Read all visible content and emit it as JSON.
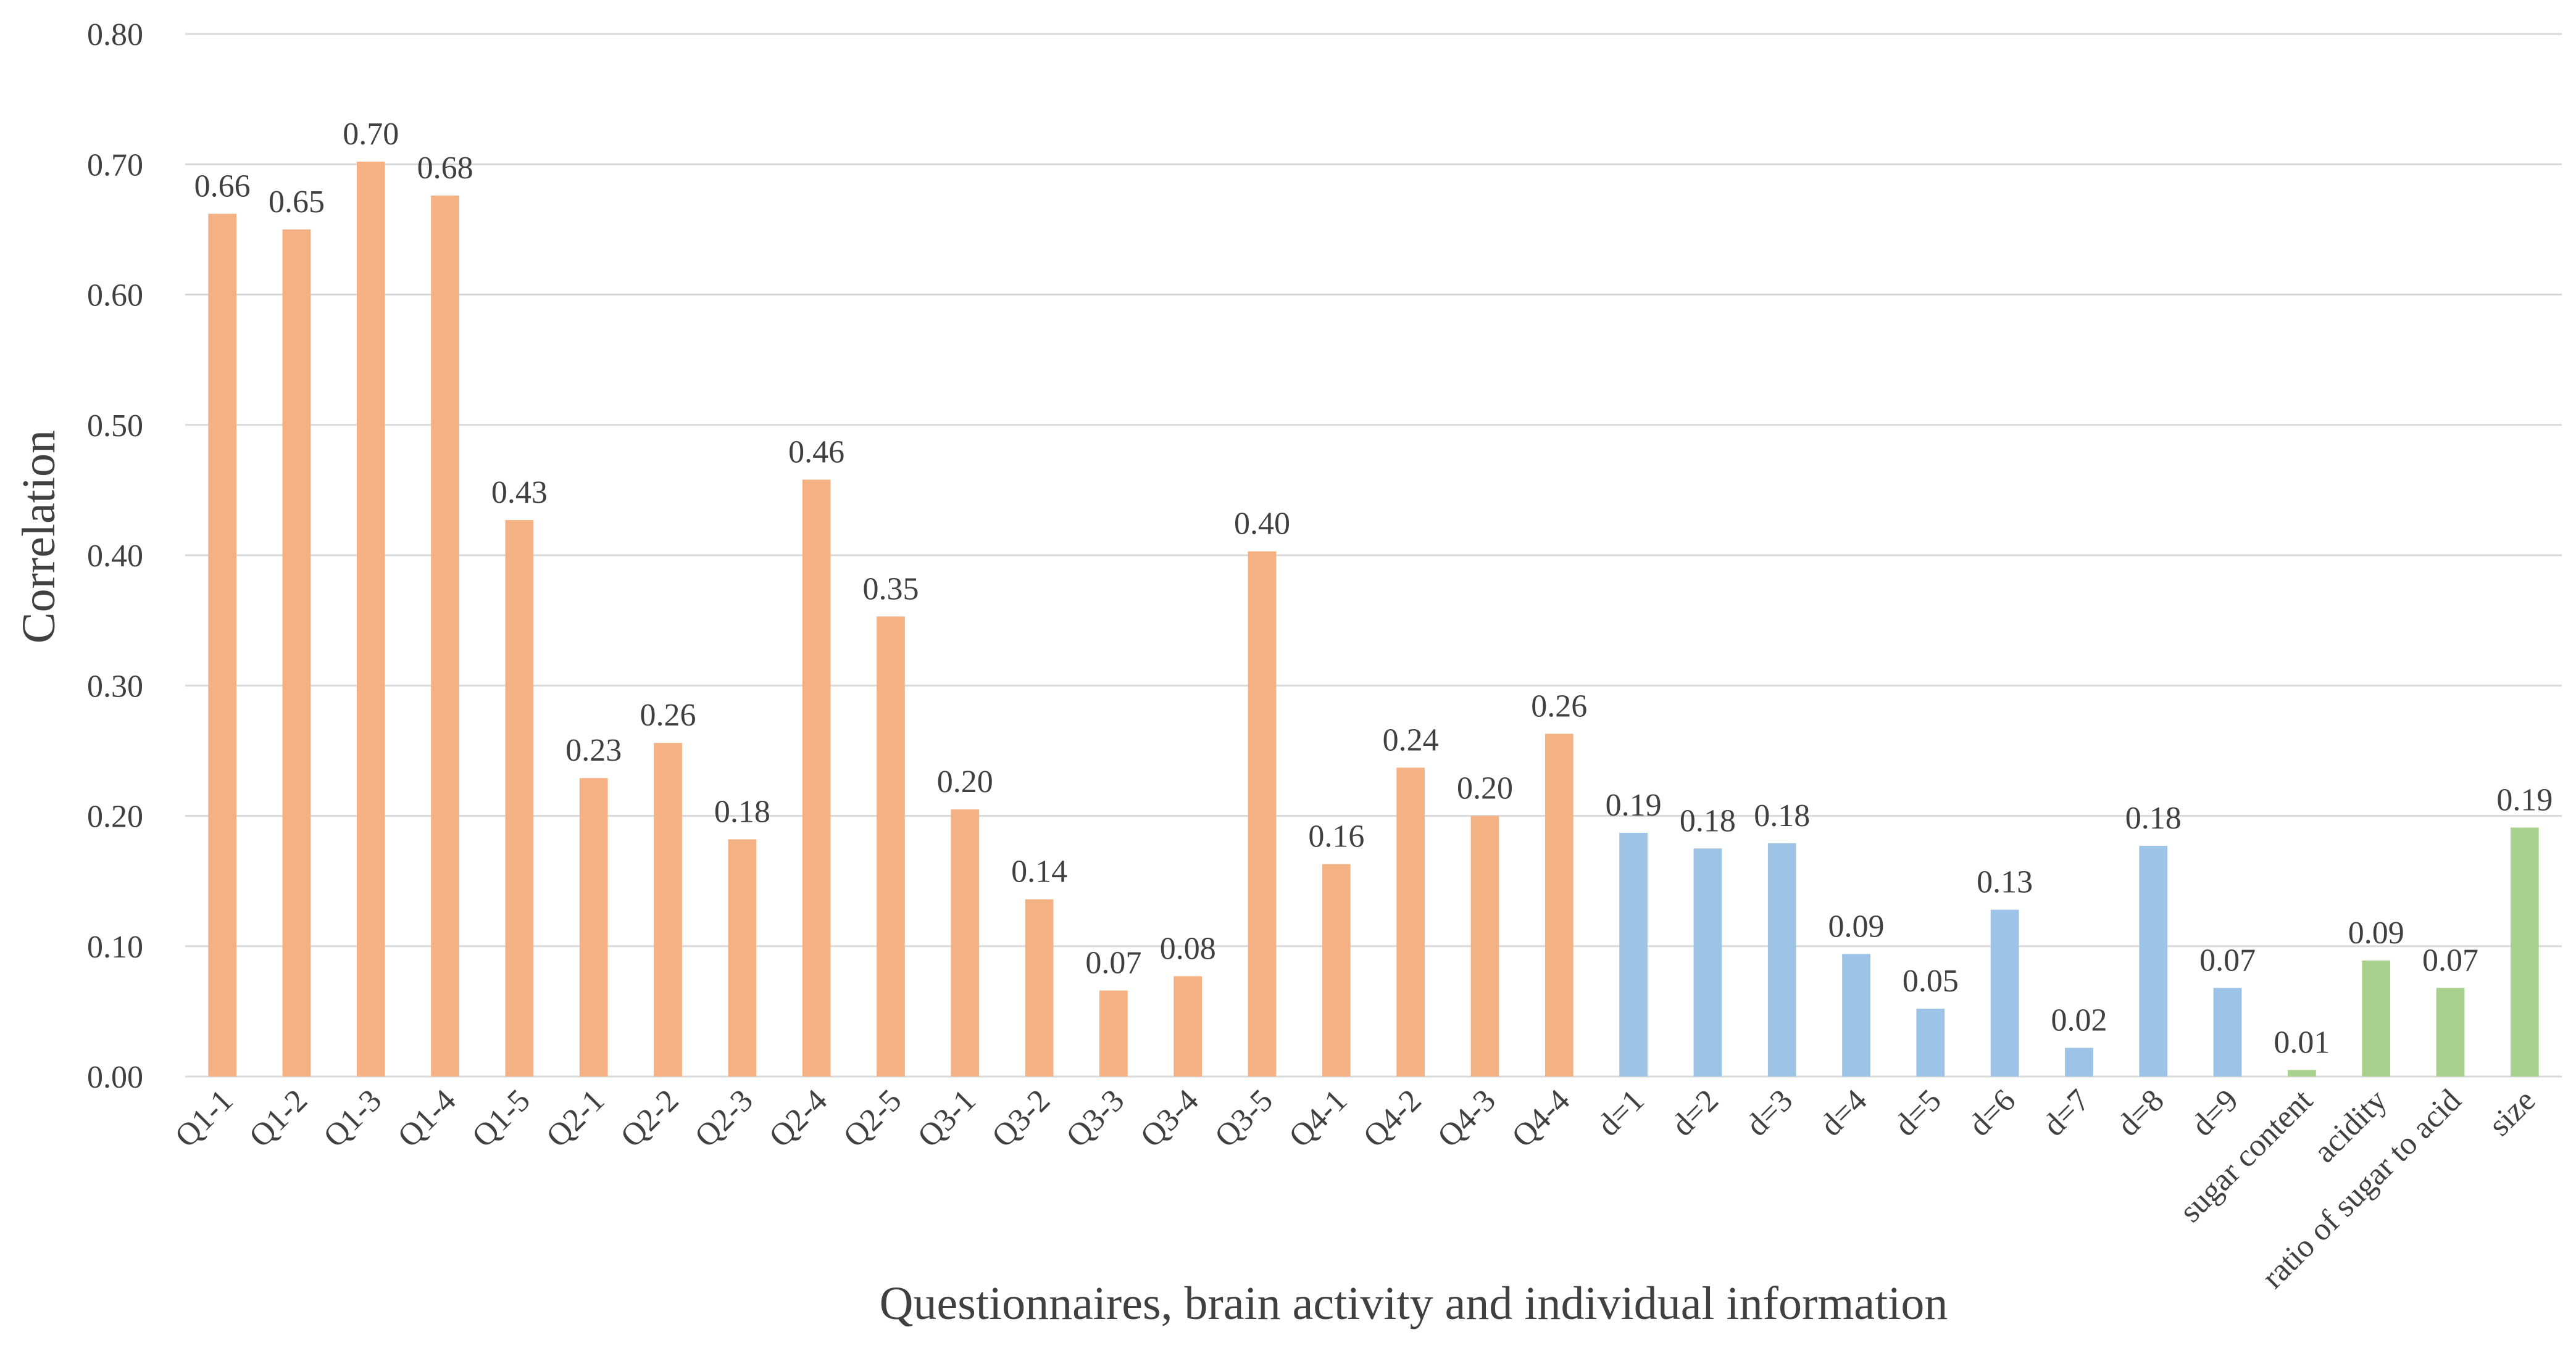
{
  "chart_data": {
    "type": "bar",
    "title": "",
    "xlabel": "Questionnaires, brain activity and individual information",
    "ylabel": "Correlation",
    "ylim": [
      0,
      0.8
    ],
    "yticks": [
      "0.00",
      "0.10",
      "0.20",
      "0.30",
      "0.40",
      "0.50",
      "0.60",
      "0.70",
      "0.80"
    ],
    "grid": true,
    "legend": "none",
    "categories": [
      "Q1-1",
      "Q1-2",
      "Q1-3",
      "Q1-4",
      "Q1-5",
      "Q2-1",
      "Q2-2",
      "Q2-3",
      "Q2-4",
      "Q2-5",
      "Q3-1",
      "Q3-2",
      "Q3-3",
      "Q3-4",
      "Q3-5",
      "Q4-1",
      "Q4-2",
      "Q4-3",
      "Q4-4",
      "d=1",
      "d=2",
      "d=3",
      "d=4",
      "d=5",
      "d=6",
      "d=7",
      "d=8",
      "d=9",
      "sugar content",
      "acidity",
      "ratio of sugar to acid",
      "size"
    ],
    "values": [
      0.662,
      0.65,
      0.702,
      0.676,
      0.427,
      0.229,
      0.256,
      0.182,
      0.458,
      0.353,
      0.205,
      0.136,
      0.066,
      0.077,
      0.403,
      0.163,
      0.237,
      0.2,
      0.263,
      0.187,
      0.175,
      0.179,
      0.094,
      0.052,
      0.128,
      0.022,
      0.177,
      0.068,
      0.005,
      0.089,
      0.068,
      0.191
    ],
    "labels": [
      "0.66",
      "0.65",
      "0.70",
      "0.68",
      "0.43",
      "0.23",
      "0.26",
      "0.18",
      "0.46",
      "0.35",
      "0.20",
      "0.14",
      "0.07",
      "0.08",
      "0.40",
      "0.16",
      "0.24",
      "0.20",
      "0.26",
      "0.19",
      "0.18",
      "0.18",
      "0.09",
      "0.05",
      "0.13",
      "0.02",
      "0.18",
      "0.07",
      "0.01",
      "0.09",
      "0.07",
      "0.19"
    ],
    "groups": [
      "questionnaire",
      "questionnaire",
      "questionnaire",
      "questionnaire",
      "questionnaire",
      "questionnaire",
      "questionnaire",
      "questionnaire",
      "questionnaire",
      "questionnaire",
      "questionnaire",
      "questionnaire",
      "questionnaire",
      "questionnaire",
      "questionnaire",
      "questionnaire",
      "questionnaire",
      "questionnaire",
      "questionnaire",
      "brain",
      "brain",
      "brain",
      "brain",
      "brain",
      "brain",
      "brain",
      "brain",
      "brain",
      "individual",
      "individual",
      "individual",
      "individual"
    ],
    "colors": {
      "questionnaire": "#F4B183",
      "brain": "#9DC3E6",
      "individual": "#A9D18E",
      "grid": "#D9D9D9",
      "text": "#404040"
    }
  }
}
